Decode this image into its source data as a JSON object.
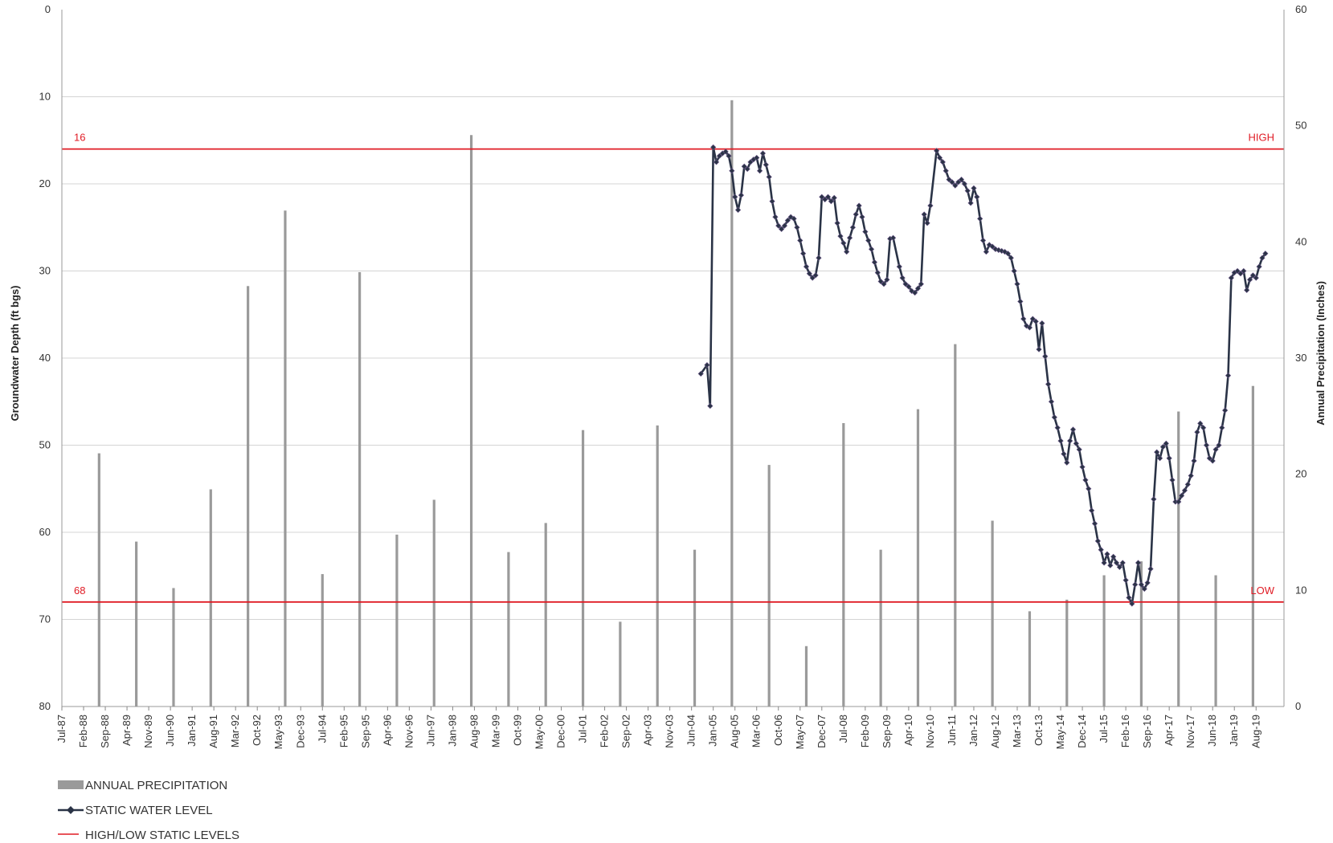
{
  "chart_data": {
    "type": "bar+line",
    "y_left": {
      "label": "Groundwater Depth (ft bgs)",
      "range": [
        0,
        80
      ],
      "inverted": true,
      "ticks": [
        "0",
        "10",
        "20",
        "30",
        "40",
        "50",
        "60",
        "70",
        "80"
      ]
    },
    "y_right": {
      "label": "Annual Precipitation (Inches)",
      "range": [
        0,
        60
      ],
      "ticks": [
        "0",
        "10",
        "20",
        "30",
        "40",
        "50",
        "60"
      ]
    },
    "x": {
      "start": "1987-07",
      "end": "2020-05",
      "ticks": [
        "Jul-87",
        "Feb-88",
        "Sep-88",
        "Apr-89",
        "Nov-89",
        "Jun-90",
        "Jan-91",
        "Aug-91",
        "Mar-92",
        "Oct-92",
        "May-93",
        "Dec-93",
        "Jul-94",
        "Feb-95",
        "Sep-95",
        "Apr-96",
        "Nov-96",
        "Jun-97",
        "Jan-98",
        "Aug-98",
        "Mar-99",
        "Oct-99",
        "May-00",
        "Dec-00",
        "Jul-01",
        "Feb-02",
        "Sep-02",
        "Apr-03",
        "Nov-03",
        "Jun-04",
        "Jan-05",
        "Aug-05",
        "Mar-06",
        "Oct-06",
        "May-07",
        "Dec-07",
        "Jul-08",
        "Feb-09",
        "Sep-09",
        "Apr-10",
        "Nov-10",
        "Jun-11",
        "Jan-12",
        "Aug-12",
        "Mar-13",
        "Oct-13",
        "May-14",
        "Dec-14",
        "Jul-15",
        "Feb-16",
        "Sep-16",
        "Apr-17",
        "Nov-17",
        "Jun-18",
        "Jan-19",
        "Aug-19"
      ]
    },
    "precipitation": [
      {
        "x": "1988-07",
        "value": 21.8
      },
      {
        "x": "1989-07",
        "value": 14.2
      },
      {
        "x": "1990-07",
        "value": 10.2
      },
      {
        "x": "1991-07",
        "value": 18.7
      },
      {
        "x": "1992-07",
        "value": 36.2
      },
      {
        "x": "1993-07",
        "value": 42.7
      },
      {
        "x": "1994-07",
        "value": 11.4
      },
      {
        "x": "1995-07",
        "value": 37.4
      },
      {
        "x": "1996-07",
        "value": 14.8
      },
      {
        "x": "1997-07",
        "value": 17.8
      },
      {
        "x": "1998-07",
        "value": 49.2
      },
      {
        "x": "1999-07",
        "value": 13.3
      },
      {
        "x": "2000-07",
        "value": 15.8
      },
      {
        "x": "2001-07",
        "value": 23.8
      },
      {
        "x": "2002-07",
        "value": 7.3
      },
      {
        "x": "2003-07",
        "value": 24.2
      },
      {
        "x": "2004-07",
        "value": 13.5
      },
      {
        "x": "2005-07",
        "value": 52.2
      },
      {
        "x": "2006-07",
        "value": 20.8
      },
      {
        "x": "2007-07",
        "value": 5.2
      },
      {
        "x": "2008-07",
        "value": 24.4
      },
      {
        "x": "2009-07",
        "value": 13.5
      },
      {
        "x": "2010-07",
        "value": 25.6
      },
      {
        "x": "2011-07",
        "value": 31.2
      },
      {
        "x": "2012-07",
        "value": 16.0
      },
      {
        "x": "2013-07",
        "value": 8.2
      },
      {
        "x": "2014-07",
        "value": 9.2
      },
      {
        "x": "2015-07",
        "value": 11.3
      },
      {
        "x": "2016-07",
        "value": 12.5
      },
      {
        "x": "2017-07",
        "value": 25.4
      },
      {
        "x": "2018-07",
        "value": 11.3
      },
      {
        "x": "2019-07",
        "value": 27.6
      }
    ],
    "static_water_level": [
      {
        "x": "2004-09",
        "y": 41.8
      },
      {
        "x": "2004-11",
        "y": 40.8
      },
      {
        "x": "2004-12",
        "y": 45.5
      },
      {
        "x": "2005-01",
        "y": 15.8
      },
      {
        "x": "2005-02",
        "y": 17.5
      },
      {
        "x": "2005-03",
        "y": 16.8
      },
      {
        "x": "2005-04",
        "y": 16.5
      },
      {
        "x": "2005-05",
        "y": 16.3
      },
      {
        "x": "2005-06",
        "y": 16.8
      },
      {
        "x": "2005-07",
        "y": 18.5
      },
      {
        "x": "2005-08",
        "y": 21.5
      },
      {
        "x": "2005-09",
        "y": 23.0
      },
      {
        "x": "2005-10",
        "y": 21.3
      },
      {
        "x": "2005-11",
        "y": 18.0
      },
      {
        "x": "2005-12",
        "y": 18.3
      },
      {
        "x": "2006-01",
        "y": 17.5
      },
      {
        "x": "2006-02",
        "y": 17.2
      },
      {
        "x": "2006-03",
        "y": 17.0
      },
      {
        "x": "2006-04",
        "y": 18.5
      },
      {
        "x": "2006-05",
        "y": 16.5
      },
      {
        "x": "2006-06",
        "y": 17.8
      },
      {
        "x": "2006-07",
        "y": 19.2
      },
      {
        "x": "2006-08",
        "y": 22.0
      },
      {
        "x": "2006-09",
        "y": 23.8
      },
      {
        "x": "2006-10",
        "y": 24.8
      },
      {
        "x": "2006-11",
        "y": 25.2
      },
      {
        "x": "2006-12",
        "y": 24.8
      },
      {
        "x": "2007-01",
        "y": 24.2
      },
      {
        "x": "2007-02",
        "y": 23.8
      },
      {
        "x": "2007-03",
        "y": 24.0
      },
      {
        "x": "2007-04",
        "y": 25.0
      },
      {
        "x": "2007-05",
        "y": 26.5
      },
      {
        "x": "2007-06",
        "y": 28.0
      },
      {
        "x": "2007-07",
        "y": 29.5
      },
      {
        "x": "2007-08",
        "y": 30.3
      },
      {
        "x": "2007-09",
        "y": 30.8
      },
      {
        "x": "2007-10",
        "y": 30.5
      },
      {
        "x": "2007-11",
        "y": 28.5
      },
      {
        "x": "2007-12",
        "y": 21.5
      },
      {
        "x": "2008-01",
        "y": 21.8
      },
      {
        "x": "2008-02",
        "y": 21.5
      },
      {
        "x": "2008-03",
        "y": 22.0
      },
      {
        "x": "2008-04",
        "y": 21.6
      },
      {
        "x": "2008-05",
        "y": 24.5
      },
      {
        "x": "2008-06",
        "y": 26.0
      },
      {
        "x": "2008-07",
        "y": 26.8
      },
      {
        "x": "2008-08",
        "y": 27.8
      },
      {
        "x": "2008-09",
        "y": 26.2
      },
      {
        "x": "2008-10",
        "y": 25.0
      },
      {
        "x": "2008-11",
        "y": 23.5
      },
      {
        "x": "2008-12",
        "y": 22.5
      },
      {
        "x": "2009-01",
        "y": 23.8
      },
      {
        "x": "2009-02",
        "y": 25.5
      },
      {
        "x": "2009-03",
        "y": 26.5
      },
      {
        "x": "2009-04",
        "y": 27.5
      },
      {
        "x": "2009-05",
        "y": 29.0
      },
      {
        "x": "2009-06",
        "y": 30.2
      },
      {
        "x": "2009-07",
        "y": 31.2
      },
      {
        "x": "2009-08",
        "y": 31.5
      },
      {
        "x": "2009-09",
        "y": 31.0
      },
      {
        "x": "2009-10",
        "y": 26.3
      },
      {
        "x": "2009-11",
        "y": 26.2
      },
      {
        "x": "2010-01",
        "y": 29.5
      },
      {
        "x": "2010-02",
        "y": 30.8
      },
      {
        "x": "2010-03",
        "y": 31.5
      },
      {
        "x": "2010-04",
        "y": 31.8
      },
      {
        "x": "2010-05",
        "y": 32.3
      },
      {
        "x": "2010-06",
        "y": 32.5
      },
      {
        "x": "2010-07",
        "y": 32.0
      },
      {
        "x": "2010-08",
        "y": 31.5
      },
      {
        "x": "2010-09",
        "y": 23.5
      },
      {
        "x": "2010-10",
        "y": 24.5
      },
      {
        "x": "2010-11",
        "y": 22.5
      },
      {
        "x": "2011-01",
        "y": 16.2
      },
      {
        "x": "2011-02",
        "y": 17.0
      },
      {
        "x": "2011-03",
        "y": 17.5
      },
      {
        "x": "2011-04",
        "y": 18.5
      },
      {
        "x": "2011-05",
        "y": 19.5
      },
      {
        "x": "2011-06",
        "y": 19.8
      },
      {
        "x": "2011-07",
        "y": 20.2
      },
      {
        "x": "2011-08",
        "y": 19.8
      },
      {
        "x": "2011-09",
        "y": 19.5
      },
      {
        "x": "2011-10",
        "y": 20.0
      },
      {
        "x": "2011-11",
        "y": 20.8
      },
      {
        "x": "2011-12",
        "y": 22.2
      },
      {
        "x": "2012-01",
        "y": 20.5
      },
      {
        "x": "2012-02",
        "y": 21.5
      },
      {
        "x": "2012-03",
        "y": 24.0
      },
      {
        "x": "2012-04",
        "y": 26.5
      },
      {
        "x": "2012-05",
        "y": 27.8
      },
      {
        "x": "2012-06",
        "y": 27.0
      },
      {
        "x": "2012-07",
        "y": 27.2
      },
      {
        "x": "2012-08",
        "y": 27.5
      },
      {
        "x": "2012-09",
        "y": 27.6
      },
      {
        "x": "2012-10",
        "y": 27.7
      },
      {
        "x": "2012-11",
        "y": 27.8
      },
      {
        "x": "2012-12",
        "y": 28.0
      },
      {
        "x": "2013-01",
        "y": 28.5
      },
      {
        "x": "2013-02",
        "y": 30.0
      },
      {
        "x": "2013-03",
        "y": 31.5
      },
      {
        "x": "2013-04",
        "y": 33.5
      },
      {
        "x": "2013-05",
        "y": 35.5
      },
      {
        "x": "2013-06",
        "y": 36.3
      },
      {
        "x": "2013-07",
        "y": 36.5
      },
      {
        "x": "2013-08",
        "y": 35.5
      },
      {
        "x": "2013-09",
        "y": 35.8
      },
      {
        "x": "2013-10",
        "y": 39.0
      },
      {
        "x": "2013-11",
        "y": 36.0
      },
      {
        "x": "2013-12",
        "y": 39.8
      },
      {
        "x": "2014-01",
        "y": 43.0
      },
      {
        "x": "2014-02",
        "y": 45.0
      },
      {
        "x": "2014-03",
        "y": 46.8
      },
      {
        "x": "2014-04",
        "y": 48.0
      },
      {
        "x": "2014-05",
        "y": 49.5
      },
      {
        "x": "2014-06",
        "y": 51.0
      },
      {
        "x": "2014-07",
        "y": 52.0
      },
      {
        "x": "2014-08",
        "y": 49.5
      },
      {
        "x": "2014-09",
        "y": 48.2
      },
      {
        "x": "2014-10",
        "y": 49.8
      },
      {
        "x": "2014-11",
        "y": 50.5
      },
      {
        "x": "2014-12",
        "y": 52.5
      },
      {
        "x": "2015-01",
        "y": 54.0
      },
      {
        "x": "2015-02",
        "y": 55.0
      },
      {
        "x": "2015-03",
        "y": 57.5
      },
      {
        "x": "2015-04",
        "y": 59.0
      },
      {
        "x": "2015-05",
        "y": 61.0
      },
      {
        "x": "2015-06",
        "y": 62.0
      },
      {
        "x": "2015-07",
        "y": 63.5
      },
      {
        "x": "2015-08",
        "y": 62.5
      },
      {
        "x": "2015-09",
        "y": 63.8
      },
      {
        "x": "2015-10",
        "y": 62.8
      },
      {
        "x": "2015-11",
        "y": 63.5
      },
      {
        "x": "2015-12",
        "y": 64.0
      },
      {
        "x": "2016-01",
        "y": 63.5
      },
      {
        "x": "2016-02",
        "y": 65.5
      },
      {
        "x": "2016-03",
        "y": 67.5
      },
      {
        "x": "2016-04",
        "y": 68.2
      },
      {
        "x": "2016-05",
        "y": 66.0
      },
      {
        "x": "2016-06",
        "y": 63.5
      },
      {
        "x": "2016-07",
        "y": 66.0
      },
      {
        "x": "2016-08",
        "y": 66.5
      },
      {
        "x": "2016-09",
        "y": 65.8
      },
      {
        "x": "2016-10",
        "y": 64.2
      },
      {
        "x": "2016-11",
        "y": 56.2
      },
      {
        "x": "2016-12",
        "y": 50.8
      },
      {
        "x": "2017-01",
        "y": 51.5
      },
      {
        "x": "2017-02",
        "y": 50.2
      },
      {
        "x": "2017-03",
        "y": 49.8
      },
      {
        "x": "2017-04",
        "y": 51.5
      },
      {
        "x": "2017-05",
        "y": 54.0
      },
      {
        "x": "2017-06",
        "y": 56.5
      },
      {
        "x": "2017-07",
        "y": 56.5
      },
      {
        "x": "2017-08",
        "y": 55.8
      },
      {
        "x": "2017-09",
        "y": 55.2
      },
      {
        "x": "2017-10",
        "y": 54.5
      },
      {
        "x": "2017-11",
        "y": 53.5
      },
      {
        "x": "2017-12",
        "y": 51.8
      },
      {
        "x": "2018-01",
        "y": 48.5
      },
      {
        "x": "2018-02",
        "y": 47.5
      },
      {
        "x": "2018-03",
        "y": 48.0
      },
      {
        "x": "2018-04",
        "y": 50.0
      },
      {
        "x": "2018-05",
        "y": 51.5
      },
      {
        "x": "2018-06",
        "y": 51.8
      },
      {
        "x": "2018-07",
        "y": 50.5
      },
      {
        "x": "2018-08",
        "y": 50.0
      },
      {
        "x": "2018-09",
        "y": 48.0
      },
      {
        "x": "2018-10",
        "y": 46.0
      },
      {
        "x": "2018-11",
        "y": 42.0
      },
      {
        "x": "2018-12",
        "y": 30.8
      },
      {
        "x": "2019-01",
        "y": 30.2
      },
      {
        "x": "2019-02",
        "y": 30.0
      },
      {
        "x": "2019-03",
        "y": 30.3
      },
      {
        "x": "2019-04",
        "y": 30.0
      },
      {
        "x": "2019-05",
        "y": 32.2
      },
      {
        "x": "2019-06",
        "y": 31.0
      },
      {
        "x": "2019-07",
        "y": 30.5
      },
      {
        "x": "2019-08",
        "y": 30.8
      },
      {
        "x": "2019-09",
        "y": 29.5
      },
      {
        "x": "2019-10",
        "y": 28.5
      },
      {
        "x": "2019-11",
        "y": 28.0
      }
    ],
    "reference_lines": [
      {
        "value": 16,
        "label_left": "16",
        "label_right": "HIGH",
        "color": "#e01b24"
      },
      {
        "value": 68,
        "label_left": "68",
        "label_right": "LOW",
        "color": "#e01b24"
      }
    ],
    "legend": {
      "position": "bottom-left",
      "items": [
        {
          "label": "ANNUAL PRECIPITATION",
          "color": "#999999"
        },
        {
          "label": "STATIC WATER LEVEL",
          "color": "#2a3346"
        },
        {
          "label": "HIGH/LOW STATIC LEVELS",
          "color": "#e01b24"
        }
      ]
    },
    "grid": true
  }
}
